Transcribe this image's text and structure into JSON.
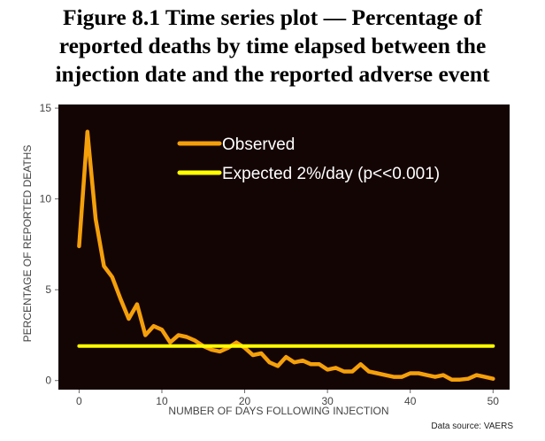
{
  "title_lines": [
    "Figure 8.1  Time series plot — Percentage of",
    "reported deaths by time elapsed between the",
    "injection date and the reported adverse event"
  ],
  "chart_data": {
    "type": "line",
    "xlabel": "NUMBER OF DAYS FOLLOWING INJECTION",
    "ylabel": "PERCENTAGE OF REPORTED DEATHS",
    "xlim": [
      -2.5,
      52
    ],
    "ylim": [
      -0.5,
      15.2
    ],
    "x_ticks": [
      0,
      10,
      20,
      30,
      40,
      50
    ],
    "y_ticks": [
      0,
      5,
      10,
      15
    ],
    "grid": false,
    "background": "#140505",
    "legend_position": "top-center",
    "series": [
      {
        "name": "Observed",
        "color": "#f5a00a",
        "x": [
          0,
          1,
          2,
          3,
          4,
          5,
          6,
          7,
          8,
          9,
          10,
          11,
          12,
          13,
          14,
          15,
          16,
          17,
          18,
          19,
          20,
          21,
          22,
          23,
          24,
          25,
          26,
          27,
          28,
          29,
          30,
          31,
          32,
          33,
          34,
          35,
          36,
          37,
          38,
          39,
          40,
          41,
          42,
          43,
          44,
          45,
          46,
          47,
          48,
          49,
          50
        ],
        "y": [
          7.4,
          13.7,
          8.9,
          6.3,
          5.7,
          4.5,
          3.4,
          4.2,
          2.5,
          3.0,
          2.8,
          2.1,
          2.5,
          2.4,
          2.2,
          1.9,
          1.7,
          1.6,
          1.8,
          2.1,
          1.8,
          1.4,
          1.5,
          1.0,
          0.8,
          1.3,
          1.0,
          1.1,
          0.9,
          0.9,
          0.6,
          0.7,
          0.5,
          0.5,
          0.9,
          0.5,
          0.4,
          0.3,
          0.2,
          0.2,
          0.4,
          0.4,
          0.3,
          0.2,
          0.3,
          0.05,
          0.05,
          0.1,
          0.3,
          0.2,
          0.1
        ]
      },
      {
        "name": "Expected 2%/day (p<<0.001)",
        "color": "#ffff00",
        "x": [
          0,
          50
        ],
        "y": [
          1.9,
          1.9
        ]
      }
    ],
    "source": "Data source: VAERS"
  }
}
